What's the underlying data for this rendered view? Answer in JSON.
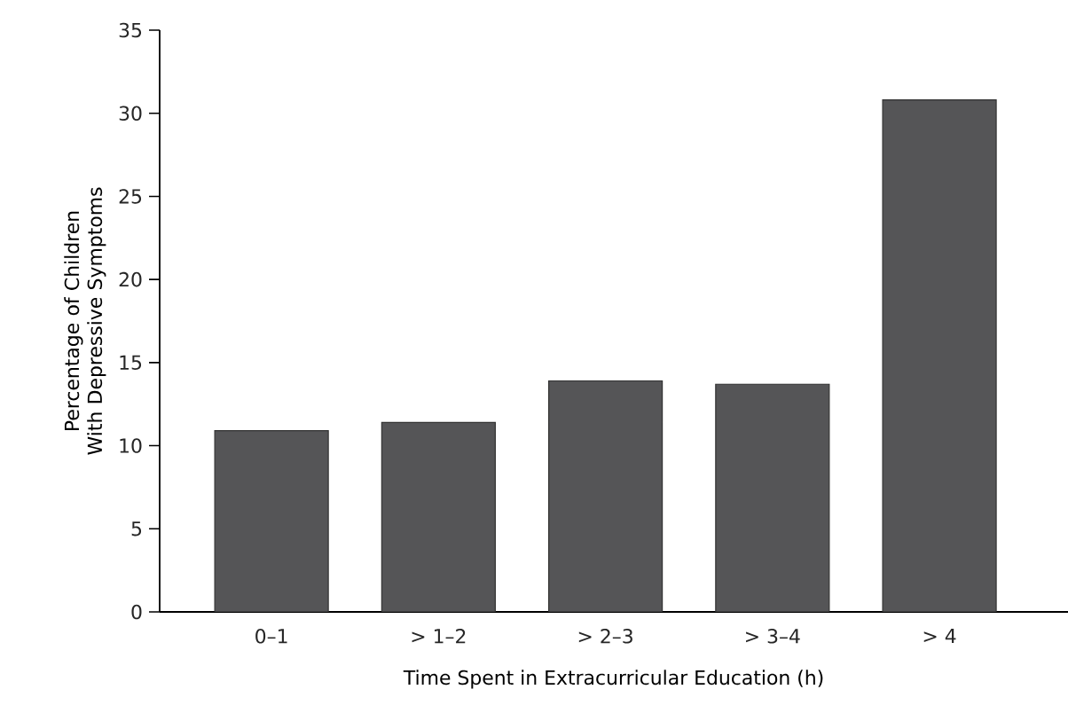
{
  "chart_data": {
    "type": "bar",
    "xlabel": "Time Spent in Extracurricular Education (h)",
    "ylabel": "Percentage of Children With Depressive Symptoms",
    "categories": [
      "0–1",
      "> 1–2",
      "> 2–3",
      "> 3–4",
      "> 4"
    ],
    "values": [
      10.9,
      11.4,
      13.9,
      13.7,
      30.8
    ],
    "color": "#555557",
    "ylim": [
      0,
      35
    ],
    "yticks": [
      0,
      5,
      10,
      15,
      20,
      25,
      30,
      35
    ]
  }
}
